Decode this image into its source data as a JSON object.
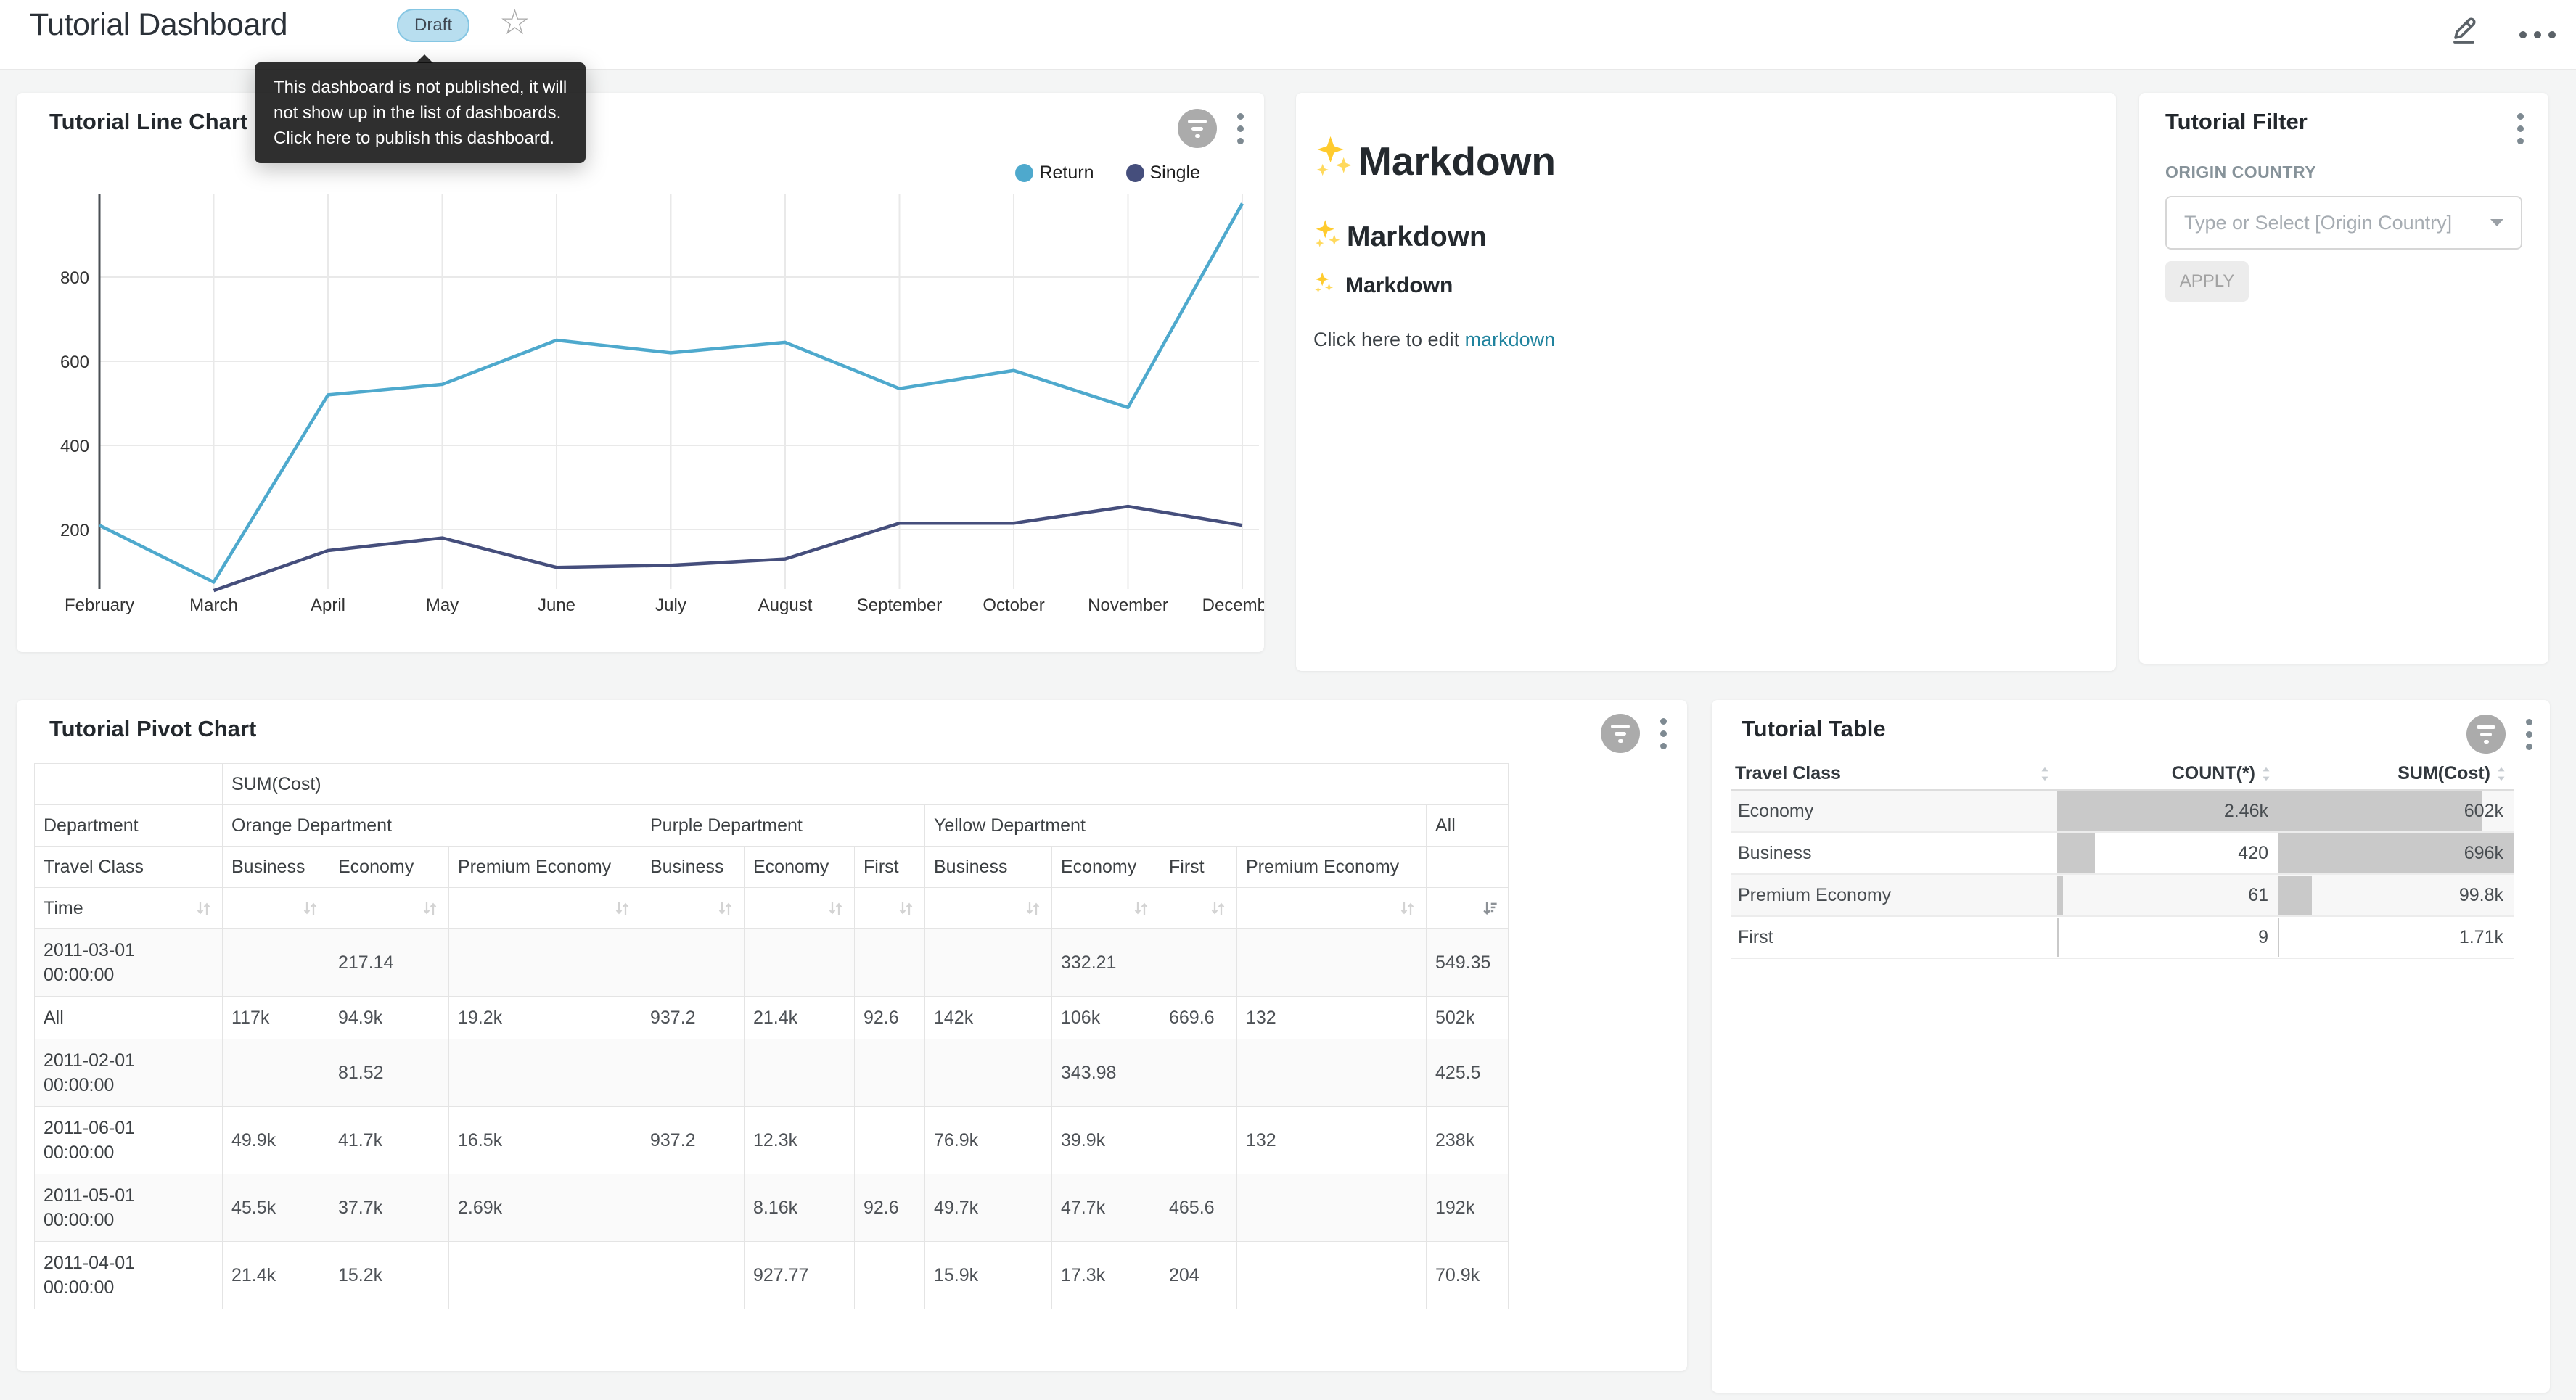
{
  "header": {
    "title": "Tutorial Dashboard",
    "badge": "Draft",
    "tooltip_lines": [
      "This dashboard is not published, it will",
      "not show up in the list of dashboards.",
      "Click here to publish this dashboard."
    ]
  },
  "line_chart_panel": {
    "title": "Tutorial Line Chart"
  },
  "chart_data": {
    "type": "line",
    "title": "Tutorial Line Chart",
    "categories": [
      "February",
      "March",
      "April",
      "May",
      "June",
      "July",
      "August",
      "September",
      "October",
      "November",
      "December"
    ],
    "series": [
      {
        "name": "Return",
        "color": "#4EA9CD",
        "values": [
          210,
          75,
          520,
          545,
          650,
          620,
          645,
          535,
          578,
          490,
          975
        ]
      },
      {
        "name": "Single",
        "color": "#454E7C",
        "values": [
          null,
          55,
          150,
          180,
          110,
          115,
          130,
          215,
          215,
          255,
          210
        ]
      }
    ],
    "yticks": [
      200,
      400,
      600,
      800
    ],
    "ylim": [
      55,
      1000
    ],
    "grid": true,
    "legend_position": "top-right"
  },
  "markdown_panel": {
    "sparkles_emoji": "✨",
    "h1": "Markdown",
    "h2": "Markdown",
    "h3": "Markdown",
    "paragraph_prefix": "Click here to edit ",
    "link_text": "markdown"
  },
  "filter_panel": {
    "title": "Tutorial Filter",
    "field_label": "ORIGIN COUNTRY",
    "placeholder": "Type or Select [Origin Country]",
    "apply_label": "APPLY"
  },
  "pivot_panel": {
    "title": "Tutorial Pivot Chart",
    "measure_label": "SUM(Cost)",
    "department_label": "Department",
    "travel_class_label": "Travel Class",
    "time_label": "Time",
    "groups": [
      {
        "label": "Orange Department",
        "cols": [
          "Business",
          "Economy",
          "Premium Economy"
        ]
      },
      {
        "label": "Purple Department",
        "cols": [
          "Business",
          "Economy",
          "First"
        ]
      },
      {
        "label": "Yellow Department",
        "cols": [
          "Business",
          "Economy",
          "First",
          "Premium Economy"
        ]
      },
      {
        "label": "All",
        "cols": [
          ""
        ]
      }
    ],
    "active_sort_column": "All",
    "rows": [
      {
        "label": "2011-03-01 00:00:00",
        "values": [
          "",
          "217.14",
          "",
          "",
          "",
          "",
          "",
          "332.21",
          "",
          "",
          "549.35"
        ]
      },
      {
        "label": "All",
        "values": [
          "117k",
          "94.9k",
          "19.2k",
          "937.2",
          "21.4k",
          "92.6",
          "142k",
          "106k",
          "669.6",
          "132",
          "502k"
        ]
      },
      {
        "label": "2011-02-01 00:00:00",
        "values": [
          "",
          "81.52",
          "",
          "",
          "",
          "",
          "",
          "343.98",
          "",
          "",
          "425.5"
        ]
      },
      {
        "label": "2011-06-01 00:00:00",
        "values": [
          "49.9k",
          "41.7k",
          "16.5k",
          "937.2",
          "12.3k",
          "",
          "76.9k",
          "39.9k",
          "",
          "132",
          "238k"
        ]
      },
      {
        "label": "2011-05-01 00:00:00",
        "values": [
          "45.5k",
          "37.7k",
          "2.69k",
          "",
          "8.16k",
          "92.6",
          "49.7k",
          "47.7k",
          "465.6",
          "",
          "192k"
        ]
      },
      {
        "label": "2011-04-01 00:00:00",
        "values": [
          "21.4k",
          "15.2k",
          "",
          "",
          "927.77",
          "",
          "15.9k",
          "17.3k",
          "204",
          "",
          "70.9k"
        ]
      }
    ]
  },
  "table_panel": {
    "title": "Tutorial Table",
    "columns": [
      "Travel Class",
      "COUNT(*)",
      "SUM(Cost)"
    ],
    "rows": [
      {
        "travel_class": "Economy",
        "count": "2.46k",
        "sum": "602k",
        "count_pct": 100,
        "sum_pct": 86.5
      },
      {
        "travel_class": "Business",
        "count": "420",
        "sum": "696k",
        "count_pct": 17.1,
        "sum_pct": 100
      },
      {
        "travel_class": "Premium Economy",
        "count": "61",
        "sum": "99.8k",
        "count_pct": 2.5,
        "sum_pct": 14.3
      },
      {
        "travel_class": "First",
        "count": "9",
        "sum": "1.71k",
        "count_pct": 0.5,
        "sum_pct": 0.3
      }
    ]
  }
}
